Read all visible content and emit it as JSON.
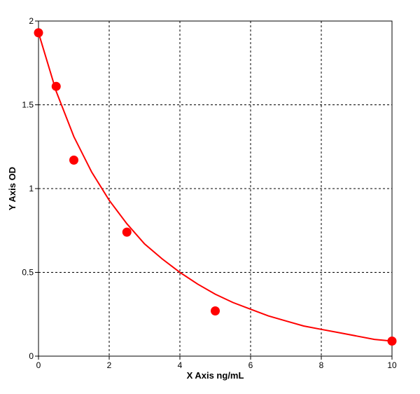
{
  "chart_data": {
    "type": "scatter",
    "xlabel": "X Axis ng/mL",
    "ylabel": "Y Axis OD",
    "xlim": [
      0,
      10
    ],
    "ylim": [
      0,
      2
    ],
    "x_ticks": [
      0,
      2,
      4,
      6,
      8,
      10
    ],
    "y_ticks": [
      0,
      0.5,
      1,
      1.5,
      2
    ],
    "x_tick_labels": [
      "0",
      "2",
      "4",
      "6",
      "8",
      "10"
    ],
    "y_tick_labels": [
      "0",
      "0.5",
      "1",
      "1.5",
      "2"
    ],
    "grid": true,
    "grid_style": "dashed",
    "colors": {
      "series": "#ff0000",
      "grid": "#000000",
      "frame": "#000000"
    },
    "series": [
      {
        "kind": "points",
        "x": [
          0,
          0.5,
          1,
          2.5,
          5,
          10
        ],
        "y": [
          1.93,
          1.61,
          1.17,
          0.74,
          0.27,
          0.09
        ]
      },
      {
        "kind": "fitted-curve",
        "x": [
          0,
          0.5,
          1,
          1.5,
          2,
          2.5,
          3,
          3.5,
          4,
          4.5,
          5,
          5.5,
          6,
          6.5,
          7,
          7.5,
          8,
          8.5,
          9,
          9.5,
          10
        ],
        "y": [
          1.93,
          1.58,
          1.31,
          1.1,
          0.93,
          0.79,
          0.67,
          0.58,
          0.5,
          0.43,
          0.37,
          0.32,
          0.28,
          0.24,
          0.21,
          0.18,
          0.16,
          0.14,
          0.12,
          0.1,
          0.09
        ]
      }
    ]
  }
}
